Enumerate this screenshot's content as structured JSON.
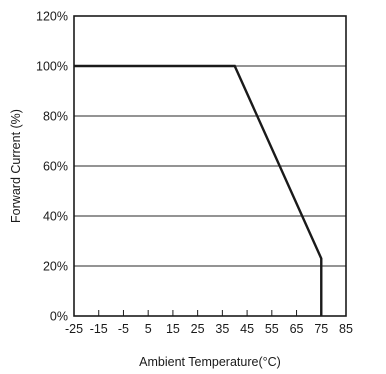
{
  "chart_data": {
    "type": "line",
    "title": "",
    "xlabel": "Ambient Temperature(°C)",
    "ylabel": "Forward Current (%)",
    "xlim": [
      -25,
      85
    ],
    "ylim": [
      0,
      120
    ],
    "x_ticks": [
      -25,
      -15,
      -5,
      5,
      15,
      25,
      35,
      45,
      55,
      65,
      75,
      85
    ],
    "x_tick_labels": [
      "-25",
      "-15",
      "-5",
      "5",
      "15",
      "25",
      "35",
      "45",
      "55",
      "65",
      "75",
      "85"
    ],
    "y_ticks": [
      0,
      20,
      40,
      60,
      80,
      100,
      120
    ],
    "y_tick_labels": [
      "0%",
      "20%",
      "40%",
      "60%",
      "80%",
      "100%",
      "120%"
    ],
    "grid": "horizontal",
    "series": [
      {
        "x": [
          -25,
          40,
          75,
          75
        ],
        "y": [
          100,
          100,
          23,
          0
        ],
        "color": "#1a1a1a"
      }
    ]
  }
}
